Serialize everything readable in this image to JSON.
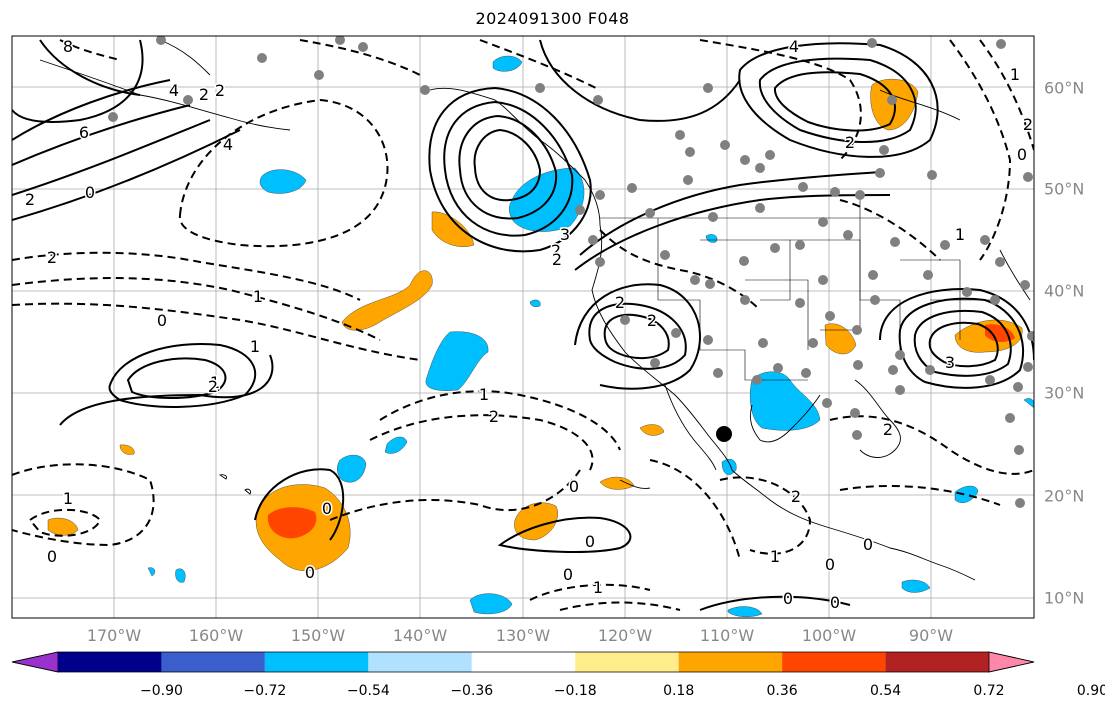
{
  "title": "2024091300 F048",
  "longitude_labels": [
    "170°W",
    "160°W",
    "150°W",
    "140°W",
    "130°W",
    "120°W",
    "110°W",
    "100°W",
    "90°W"
  ],
  "latitude_labels": [
    "60°N",
    "50°N",
    "40°N",
    "30°N",
    "20°N",
    "10°N"
  ],
  "colorbar": {
    "tick_labels": [
      "−0.90",
      "−0.72",
      "−0.54",
      "−0.36",
      "−0.18",
      "0.18",
      "0.36",
      "0.54",
      "0.72",
      "0.90"
    ],
    "colors": [
      "#9932CC",
      "#00008B",
      "#3A5FCD",
      "#00BFFF",
      "#B0E2FF",
      "#FFFFFF",
      "#FFEC8B",
      "#FFA500",
      "#FF4500",
      "#B22222",
      "#FF88AA"
    ]
  },
  "contour_labels": {
    "solid": [
      "8",
      "6",
      "2",
      "0",
      "4",
      "3",
      "2",
      "3",
      "2",
      "1",
      "2",
      "2",
      "1",
      "0",
      "3",
      "4",
      "0"
    ],
    "dashed": [
      "2",
      "4",
      "2",
      "1",
      "0",
      "1",
      "2",
      "0",
      "0",
      "1",
      "0",
      "1",
      "0",
      "2",
      "1",
      "2",
      "0",
      "0",
      "2",
      "1",
      "2",
      "0",
      "2",
      "1",
      "0",
      "2",
      "0"
    ]
  },
  "colors": {
    "land_lines": "#000000",
    "grid": "#999999",
    "positive_shading": "#FFA500",
    "strong_positive": "#FF4500",
    "negative_shading": "#00BFFF",
    "station_dots": "#808080"
  }
}
